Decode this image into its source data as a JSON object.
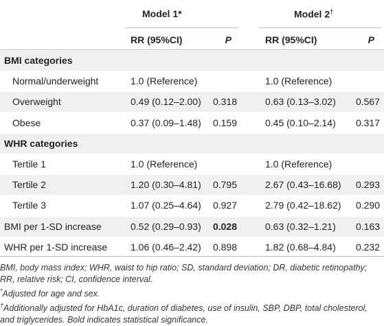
{
  "header": {
    "model1": {
      "label": "Model 1",
      "mark": "*"
    },
    "model2": {
      "label": "Model 2",
      "mark": "†"
    },
    "columns": [
      "RR (95%CI)",
      "P",
      "RR (95%CI)",
      "P"
    ]
  },
  "table": {
    "rows": [
      {
        "section": "BMI categories"
      },
      {
        "label": "Normal/underweight",
        "rr1": "1.0 (Reference)",
        "rr2": "1.0 (Reference)"
      },
      {
        "label": "Overweight",
        "rr1": "0.49 (0.12–2.00)",
        "p1": "0.318",
        "rr2": "0.63 (0.13–3.02)",
        "p2": "0.567"
      },
      {
        "label": "Obese",
        "rr1": "0.37 (0.09–1.48)",
        "p1": "0.159",
        "rr2": "0.45 (0.10–2.14)",
        "p2": "0.317"
      },
      {
        "section": "WHR categories"
      },
      {
        "label": "Tertile 1",
        "rr1": "1.0 (Reference)",
        "rr2": "1.0 (Reference)"
      },
      {
        "label": "Tertile 2",
        "rr1": "1.20 (0.30–4.81)",
        "p1": "0.795",
        "rr2": "2.67 (0.43–16.68)",
        "p2": "0.293"
      },
      {
        "label": "Tertile 3",
        "rr1": "1.07 (0.25–4.64)",
        "p1": "0.927",
        "rr2": "2.79 (0.42–18.62)",
        "p2": "0.290"
      },
      {
        "label": "BMI per 1-SD increase",
        "flush": true,
        "rr1": "0.52 (0.29–0.93)",
        "p1": "0.028",
        "p1_bold": true,
        "rr2": "0.63 (0.32–1.21)",
        "p2": "0.163"
      },
      {
        "label": "WHR per 1-SD increase",
        "flush": true,
        "rr1": "1.06 (0.46–2.42)",
        "p1": "0.898",
        "rr2": "1.82 (0.68–4.84)",
        "p2": "0.232"
      }
    ]
  },
  "footnotes": [
    {
      "text": "BMI, body mass index; WHR, waist to hip ratio; SD, standard deviation; DR, diabetic retinopathy; RR, relative risk; CI, confidence interval."
    },
    {
      "mark": "*",
      "text": "Adjusted for age and sex."
    },
    {
      "mark": "†",
      "text": "Additionally adjusted for HbA1c, duration of diabetes, use of insulin, SBP, DBP, total cholesterol, and triglycerides. Bold indicates statistical significance."
    }
  ]
}
